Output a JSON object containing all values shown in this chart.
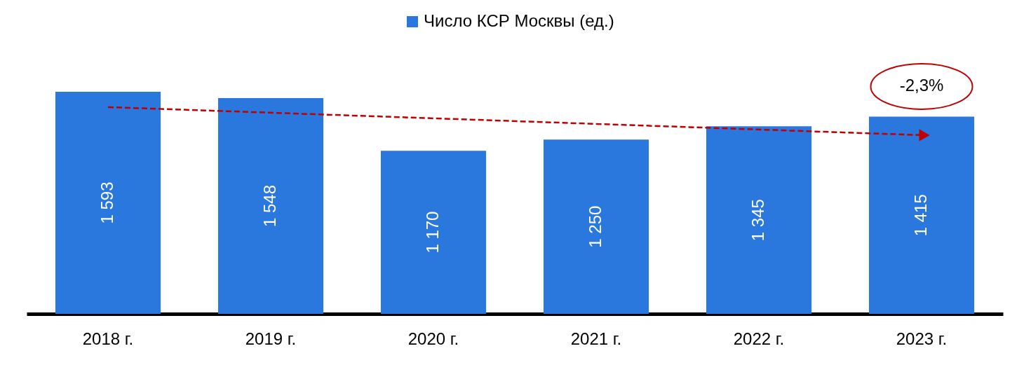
{
  "chart_data": {
    "type": "bar",
    "categories": [
      "2018 г.",
      "2019 г.",
      "2020 г.",
      "2021 г.",
      "2022 г.",
      "2023 г."
    ],
    "series": [
      {
        "name": "Число КСР Москвы (ед.)",
        "color": "#2a77dd",
        "values": [
          1593,
          1548,
          1170,
          1250,
          1345,
          1415
        ],
        "value_labels": [
          "1 593",
          "1 548",
          "1 170",
          "1 250",
          "1 345",
          "1 415"
        ]
      },
      {
        "type": "line",
        "x": [
          "2018 г.",
          "2023 г."
        ],
        "values": [
          1483,
          1282
        ],
        "color": "#c00000",
        "line_style": "dashed"
      }
    ],
    "annotations": [
      "-2,3%"
    ],
    "legend": "top",
    "tick_labels": "x"
  }
}
